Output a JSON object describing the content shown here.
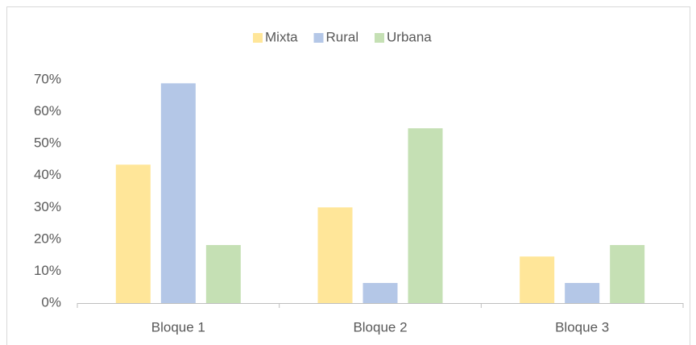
{
  "chart_data": {
    "type": "bar",
    "categories": [
      "Bloque 1",
      "Bloque 2",
      "Bloque 3"
    ],
    "series": [
      {
        "name": "Mixta",
        "color": "#ffe699",
        "values": [
          43.4,
          30.0,
          14.6
        ]
      },
      {
        "name": "Rural",
        "color": "#b4c7e7",
        "values": [
          68.9,
          6.3,
          6.3
        ]
      },
      {
        "name": "Urbana",
        "color": "#c5e0b4",
        "values": [
          18.2,
          54.8,
          18.2
        ]
      }
    ],
    "ylim": [
      0,
      70
    ],
    "yticks": [
      {
        "value": 0,
        "label": "0%"
      },
      {
        "value": 10,
        "label": "10%"
      },
      {
        "value": 20,
        "label": "20%"
      },
      {
        "value": 30,
        "label": "30%"
      },
      {
        "value": 40,
        "label": "40%"
      },
      {
        "value": 50,
        "label": "50%"
      },
      {
        "value": 60,
        "label": "60%"
      },
      {
        "value": 70,
        "label": "70%"
      }
    ],
    "grid": false,
    "legend": "top"
  }
}
